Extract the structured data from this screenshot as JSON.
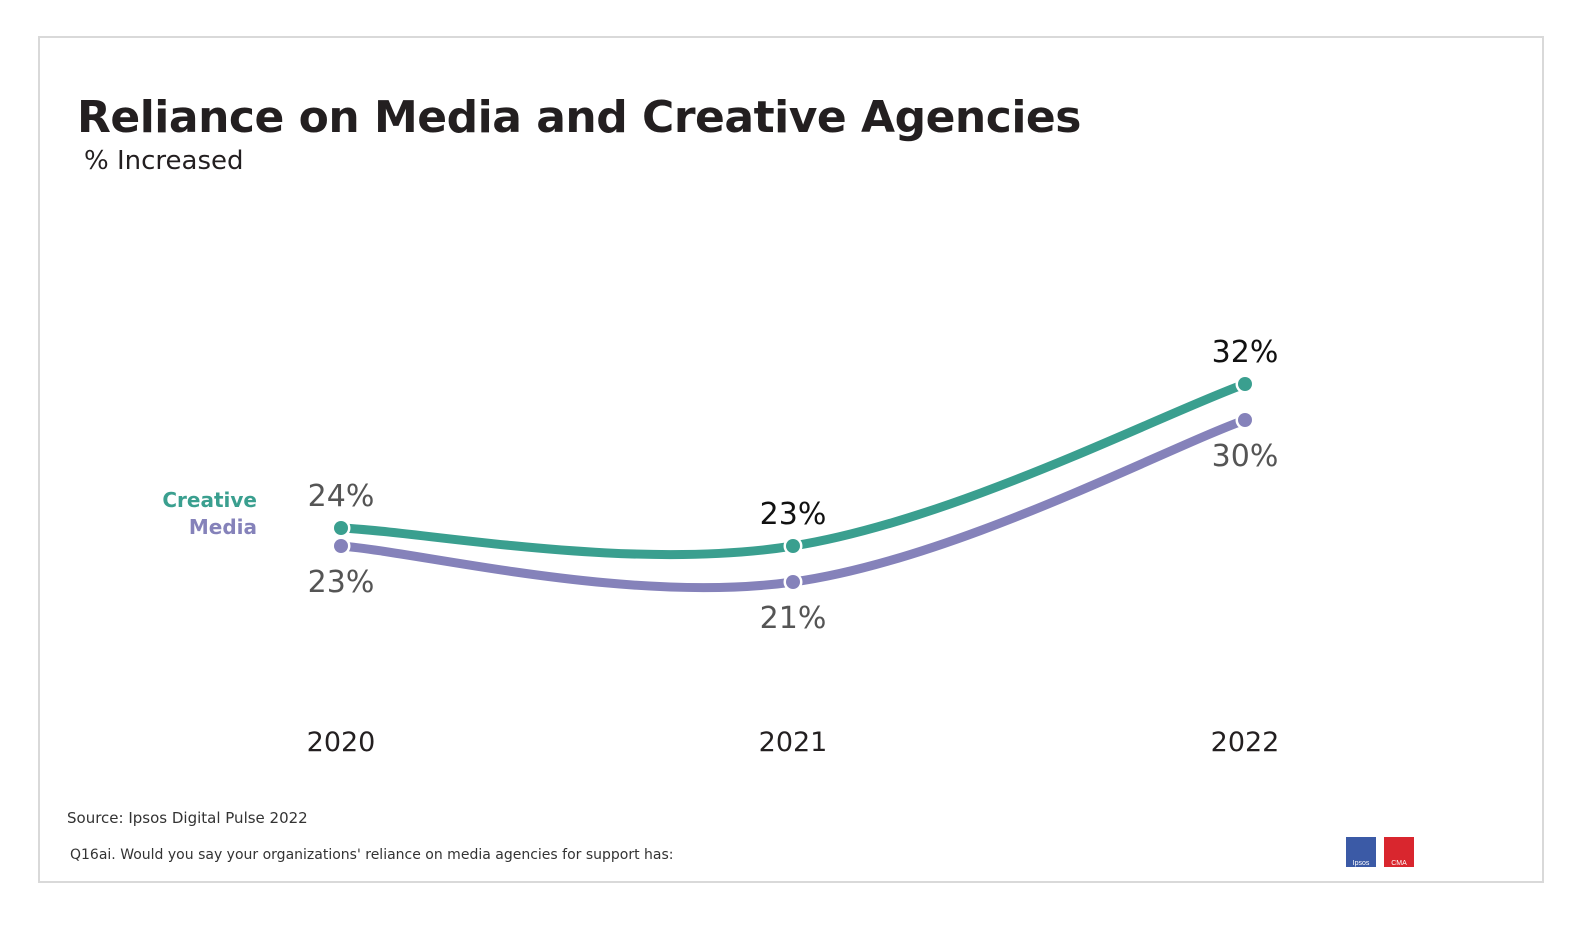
{
  "header": {
    "title": "Reliance on Media and Creative Agencies",
    "subtitle": "% Increased"
  },
  "colors": {
    "creative": "#3a9f8f",
    "media": "#8582ba",
    "text_dark": "#231f20",
    "label_gray": "#555555"
  },
  "legend": {
    "creative": "Creative",
    "media": "Media"
  },
  "chart_data": {
    "type": "line",
    "title": "Reliance on Media and Creative Agencies",
    "subtitle": "% Increased",
    "xlabel": "",
    "ylabel": "",
    "categories": [
      "2020",
      "2021",
      "2022"
    ],
    "series": [
      {
        "name": "Creative",
        "values": [
          24,
          23,
          32
        ],
        "labels": [
          "24%",
          "23%",
          "32%"
        ],
        "color": "#3a9f8f",
        "label_position": "above"
      },
      {
        "name": "Media",
        "values": [
          23,
          21,
          30
        ],
        "labels": [
          "23%",
          "21%",
          "30%"
        ],
        "color": "#8582ba",
        "label_position": "below"
      }
    ],
    "ylim": [
      10,
      40
    ],
    "grid": false,
    "legend_position": "left"
  },
  "footer": {
    "source": "Source: Ipsos Digital Pulse 2022",
    "question": "Q16ai. Would you say your organizations' reliance on media agencies for support has:",
    "logos": [
      {
        "name": "Ipsos",
        "color": "#3b5aa6"
      },
      {
        "name": "CMA",
        "color": "#d9262e"
      }
    ]
  }
}
